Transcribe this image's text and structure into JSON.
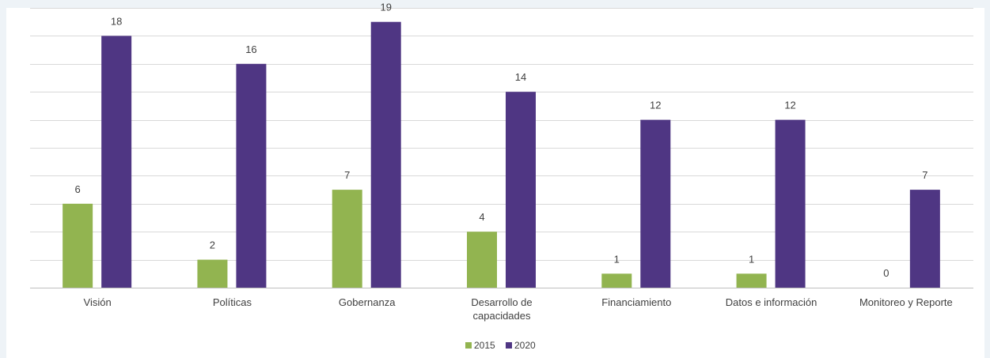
{
  "chart_data": {
    "type": "bar",
    "categories": [
      "Visión",
      "Políticas",
      "Gobernanza",
      "Desarrollo de capacidades",
      "Financiamiento",
      "Datos e información",
      "Monitoreo y Reporte"
    ],
    "category_lines": [
      [
        "Visión"
      ],
      [
        "Políticas"
      ],
      [
        "Gobernanza"
      ],
      [
        "Desarrollo de",
        "capacidades"
      ],
      [
        "Financiamiento"
      ],
      [
        "Datos e información"
      ],
      [
        "Monitoreo y Reporte"
      ]
    ],
    "series": [
      {
        "name": "2015",
        "values": [
          6,
          2,
          7,
          4,
          1,
          1,
          0
        ],
        "color": "#92b450"
      },
      {
        "name": "2020",
        "values": [
          18,
          16,
          19,
          14,
          12,
          12,
          7
        ],
        "color": "#4f3683"
      }
    ],
    "ylim": [
      0,
      20
    ],
    "grid_step": 2,
    "grid": true,
    "legend_position": "bottom",
    "title": "",
    "xlabel": "",
    "ylabel": ""
  }
}
